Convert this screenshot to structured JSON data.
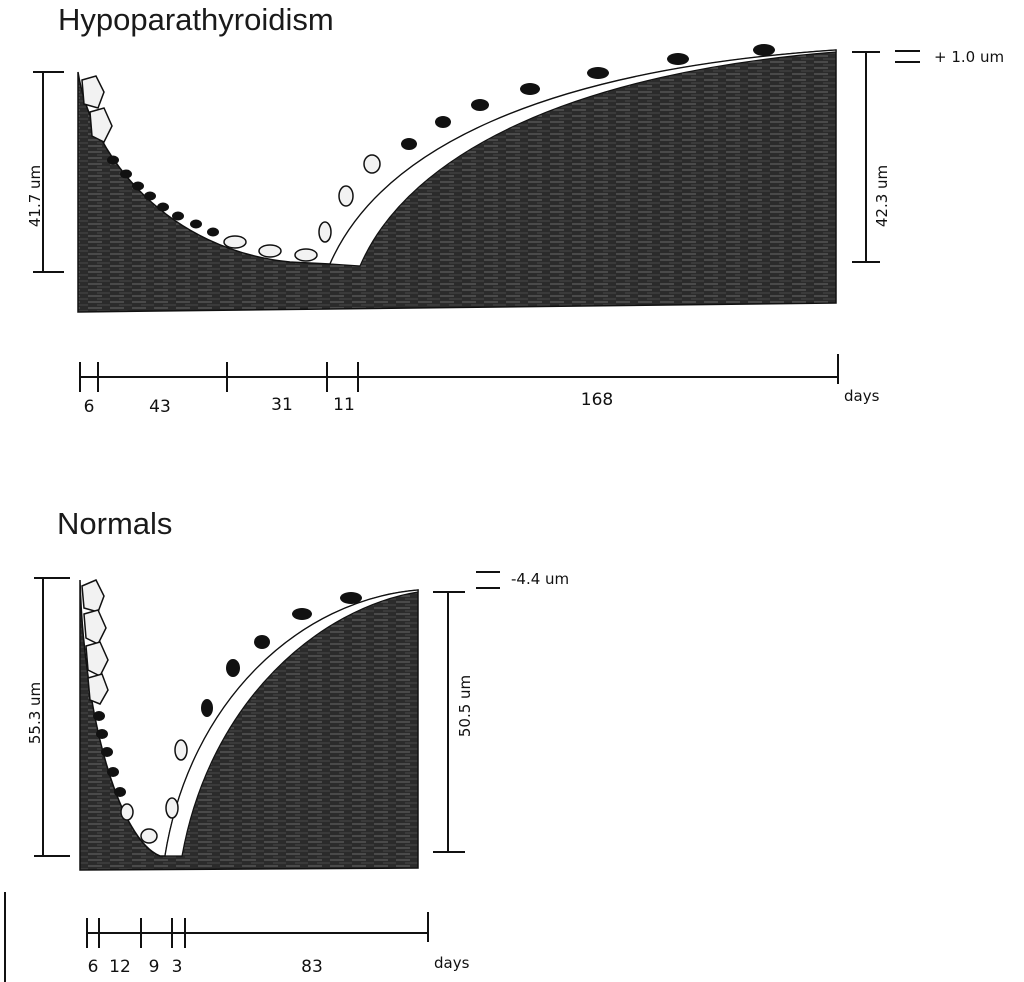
{
  "panels": [
    {
      "title": "Hypoparathyroidism",
      "depth_left": "41.7 um",
      "depth_right": "42.3 um",
      "balance": "+ 1.0 um",
      "timeline": {
        "segments": [
          "6",
          "43",
          "31",
          "11",
          "168"
        ],
        "unit": "days"
      }
    },
    {
      "title": "Normals",
      "depth_left": "55.3 um",
      "depth_right": "50.5 um",
      "balance": "-4.4 um",
      "timeline": {
        "segments": [
          "6",
          "12",
          "9",
          "3",
          "83"
        ],
        "unit": "days"
      }
    }
  ],
  "colors": {
    "bone": "#2b2b2b",
    "bone_texture": "#6a6a6a",
    "osteoid": "#ffffff",
    "line": "#111111",
    "cell_dark": "#111111",
    "cell_light": "#f2f2f2"
  }
}
